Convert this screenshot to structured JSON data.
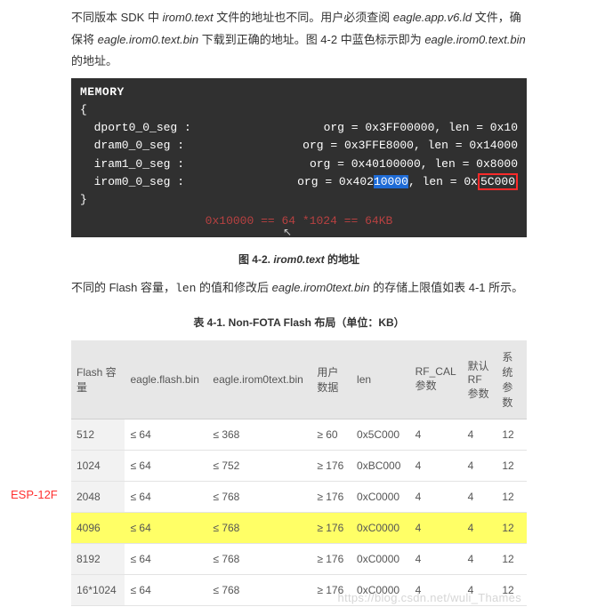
{
  "paragraph1_parts": {
    "p1": "不同版本 SDK 中 ",
    "i1": "irom0.text",
    "p2": " 文件的地址也不同。用户必须查阅 ",
    "i2": "eagle.app.v6.ld",
    "p3": " 文件，确保将 ",
    "i3": "eagle.irom0.text.bin",
    "p4": " 下载到正确的地址。图 4-2 中蓝色标示即为 ",
    "i4": "eagle.irom0.text.bin",
    "p5": " 的地址。"
  },
  "code": {
    "title": "MEMORY",
    "brace_open": "{",
    "brace_close": "}",
    "indent": "  ",
    "segs": [
      {
        "name": "dport0_0_seg :",
        "right_pre": "org = 0x3FF00000, len = 0x10",
        "right_hl": "",
        "right_post": ""
      },
      {
        "name": "dram0_0_seg :",
        "right_pre": "org = 0x3FFE8000, len = 0x14000",
        "right_hl": "",
        "right_post": ""
      },
      {
        "name": "iram1_0_seg :",
        "right_pre": "org = 0x40100000, len = 0x8000",
        "right_hl": "",
        "right_post": ""
      },
      {
        "name": "irom0_0_seg :",
        "right_pre": "org = 0x402",
        "blue": "10000",
        "mid": ", len = 0x",
        "red": "5C000",
        "post": ""
      }
    ],
    "annotation": "0x10000 == 64 *1024 == 64KB"
  },
  "fig_caption_pre": "图 4-2. ",
  "fig_caption_i": "irom0.text",
  "fig_caption_post": " 的地址",
  "paragraph2": {
    "p1": "不同的 Flash 容量，",
    "c1": "len",
    "p2": " 的值和修改后 ",
    "i1": "eagle.irom0text.bin",
    "p3": " 的存储上限值如表 4-1 所示。"
  },
  "table_caption": "表 4-1. Non-FOTA Flash 布局（单位：KB）",
  "esp_label": "ESP-12F",
  "table": {
    "columns": [
      "Flash 容量",
      "eagle.flash.bin",
      "eagle.irom0text.bin",
      "用户数据",
      "len",
      "RF_CAL 参数",
      "默认 RF 参数",
      "系统参数"
    ],
    "col_widths": [
      "56px",
      "88px",
      "112px",
      "58px",
      "62px",
      "50px",
      "48px",
      "38px"
    ],
    "rows": [
      {
        "hl": false,
        "cells": [
          "512",
          "≤ 64",
          "≤ 368",
          "≥ 60",
          "0x5C000",
          "4",
          "4",
          "12"
        ]
      },
      {
        "hl": false,
        "cells": [
          "1024",
          "≤ 64",
          "≤ 752",
          "≥ 176",
          "0xBC000",
          "4",
          "4",
          "12"
        ]
      },
      {
        "hl": false,
        "cells": [
          "2048",
          "≤ 64",
          "≤ 768",
          "≥ 176",
          "0xC0000",
          "4",
          "4",
          "12"
        ]
      },
      {
        "hl": true,
        "cells": [
          "4096",
          "≤ 64",
          "≤ 768",
          "≥ 176",
          "0xC0000",
          "4",
          "4",
          "12"
        ]
      },
      {
        "hl": false,
        "cells": [
          "8192",
          "≤ 64",
          "≤ 768",
          "≥ 176",
          "0xC0000",
          "4",
          "4",
          "12"
        ]
      },
      {
        "hl": false,
        "cells": [
          "16*1024",
          "≤ 64",
          "≤ 768",
          "≥ 176",
          "0xC0000",
          "4",
          "4",
          "12"
        ]
      }
    ]
  },
  "watermark": "https://blog.csdn.net/wuli_Thames"
}
